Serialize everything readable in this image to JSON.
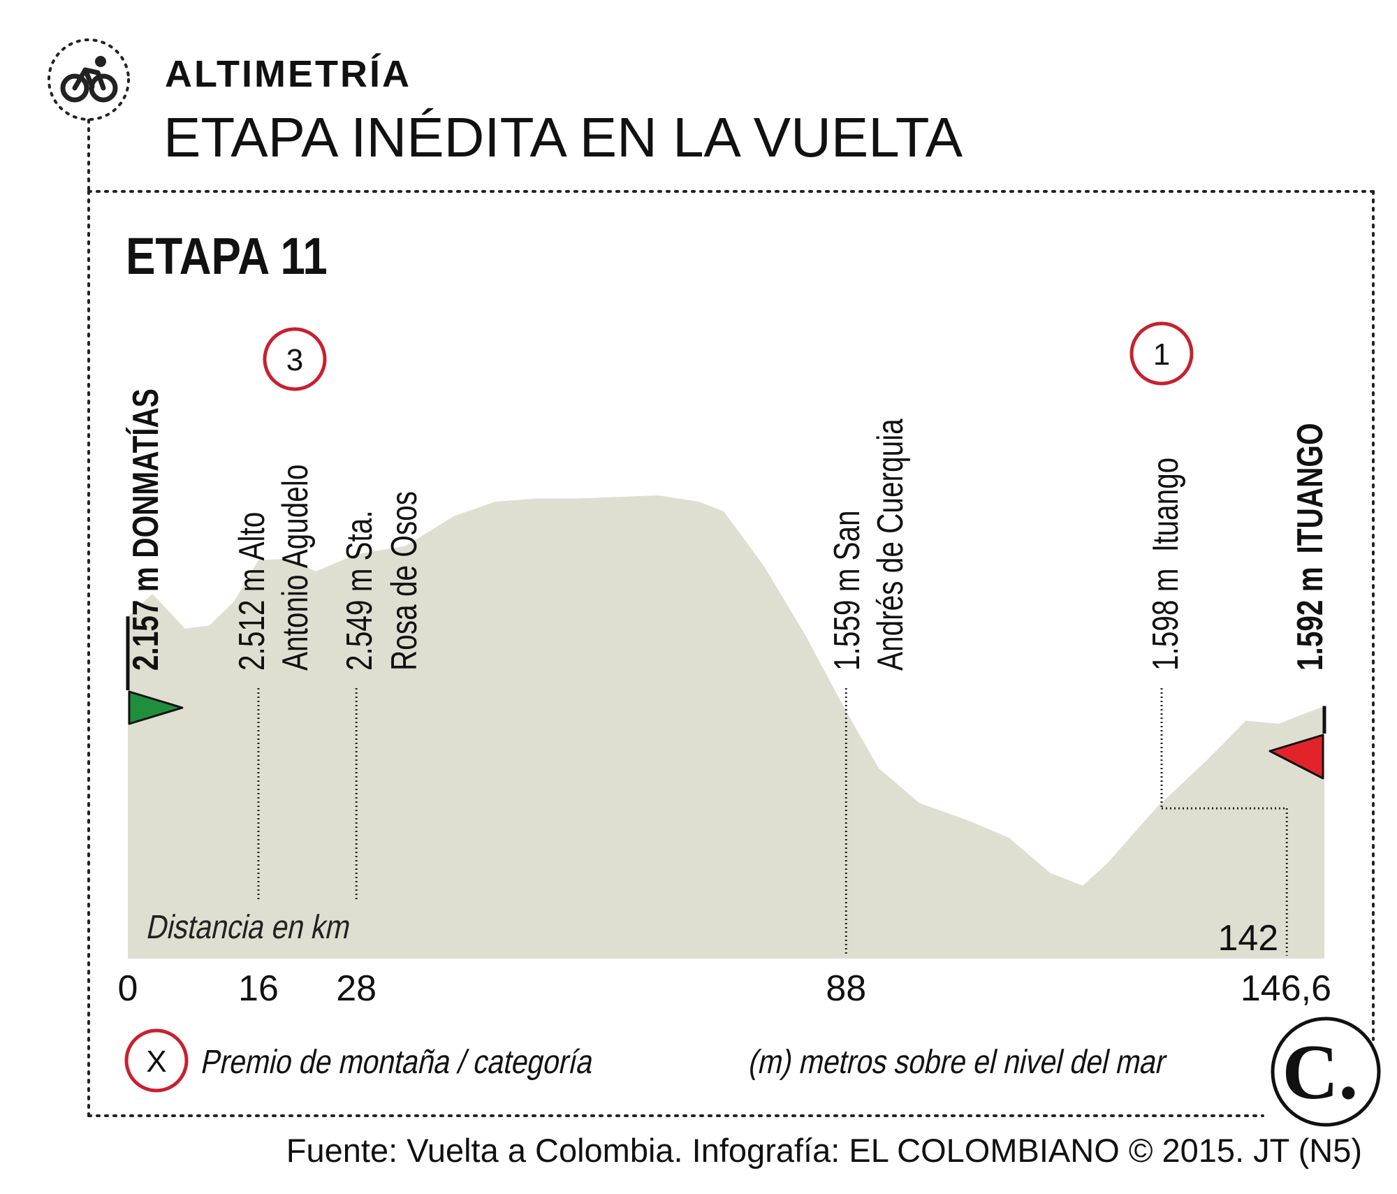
{
  "header": {
    "section_title": "ALTIMETRÍA",
    "headline": "ETAPA INÉDITA EN LA VUELTA",
    "icon": "cyclist-icon"
  },
  "chart_data": {
    "type": "area",
    "title": "ETAPA 11",
    "xlabel": "Distancia en km",
    "ylabel": "",
    "xlim": [
      0,
      146.6
    ],
    "ylim": [
      0,
      3400
    ],
    "x_ticks": [
      "0",
      "16",
      "28",
      "88",
      "146,6"
    ],
    "x_tick_values": [
      0,
      16,
      28,
      88,
      146.6
    ],
    "extra_tick": {
      "label": "142",
      "x": 142
    },
    "colors": {
      "fill": "#dfdfd1",
      "accent_red": "#c8202f",
      "start_flag": "#1f8f3d",
      "finish_flag": "#e0242a"
    },
    "profile": {
      "x": [
        0,
        3,
        7,
        10,
        13,
        16,
        20,
        23,
        28,
        34,
        40,
        45,
        50,
        55,
        60,
        65,
        70,
        73,
        78,
        83,
        88,
        92,
        97,
        103,
        108,
        113,
        117,
        120,
        126,
        132,
        137,
        141,
        143,
        146.6
      ],
      "y": [
        2157,
        2300,
        2080,
        2100,
        2250,
        2512,
        2520,
        2440,
        2549,
        2600,
        2790,
        2880,
        2900,
        2900,
        2910,
        2920,
        2880,
        2820,
        2470,
        2040,
        1559,
        1200,
        980,
        870,
        760,
        540,
        460,
        600,
        950,
        1240,
        1500,
        1480,
        1520,
        1592
      ]
    },
    "points": [
      {
        "x": 0,
        "elevation": "2.157 m",
        "name": "DONMATÍAS",
        "type": "start"
      },
      {
        "x": 16,
        "elevation": "2.512 m",
        "name": "Alto Antonio Agudelo",
        "name_line1": "Alto",
        "name_line2": "Antonio Agudelo",
        "category": "3"
      },
      {
        "x": 28,
        "elevation": "2.549 m",
        "name": "Sta. Rosa de Osos",
        "name_line1": "Sta.",
        "name_line2": "Rosa de Osos"
      },
      {
        "x": 88,
        "elevation": "1.559 m",
        "name": "San Andrés de Cuerquia",
        "name_line1": "San",
        "name_line2": "Andrés de Cuerquia"
      },
      {
        "x": 142,
        "elevation": "1.598 m",
        "name": "Ituango",
        "category": "1"
      },
      {
        "x": 146.6,
        "elevation": "1.592 m",
        "name": "ITUANGO",
        "type": "finish"
      }
    ]
  },
  "legend": {
    "symbol": "X",
    "mountain_prize": "Premio de montaña / categoría",
    "units_note": "(m) metros sobre el nivel del mar"
  },
  "footer": {
    "source": "Fuente: Vuelta a Colombia. Infografía: EL COLOMBIANO © 2015. JT (N5)",
    "logo_letter": "C."
  }
}
